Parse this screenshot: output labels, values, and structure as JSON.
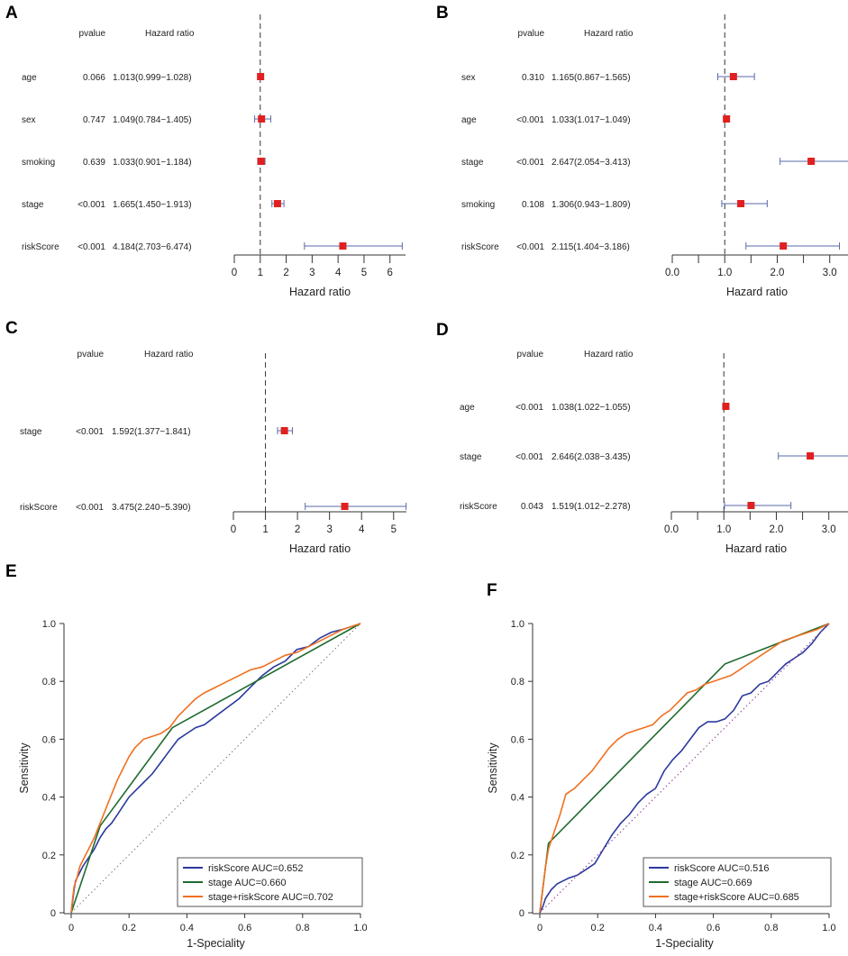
{
  "chart_data": [
    {
      "type": "forest",
      "panel": "A",
      "headers": {
        "pvalue": "pvalue",
        "hr": "Hazard ratio"
      },
      "rows": [
        {
          "label": "age",
          "pvalue": "0.066",
          "hr_text": "1.013(0.999−1.028)",
          "hr": 1.013,
          "lo": 0.999,
          "hi": 1.028
        },
        {
          "label": "sex",
          "pvalue": "0.747",
          "hr_text": "1.049(0.784−1.405)",
          "hr": 1.049,
          "lo": 0.784,
          "hi": 1.405
        },
        {
          "label": "smoking",
          "pvalue": "0.639",
          "hr_text": "1.033(0.901−1.184)",
          "hr": 1.033,
          "lo": 0.901,
          "hi": 1.184
        },
        {
          "label": "stage",
          "pvalue": "<0.001",
          "hr_text": "1.665(1.450−1.913)",
          "hr": 1.665,
          "lo": 1.45,
          "hi": 1.913
        },
        {
          "label": "riskScore",
          "pvalue": "<0.001",
          "hr_text": "4.184(2.703−6.474)",
          "hr": 4.184,
          "lo": 2.703,
          "hi": 6.474
        }
      ],
      "xlim": [
        0,
        6.6
      ],
      "ticks": [
        0,
        1,
        2,
        3,
        4,
        5,
        6
      ],
      "tick_labels": [
        "0",
        "1",
        "2",
        "3",
        "4",
        "5",
        "6"
      ],
      "ref_line": 1,
      "xlabel": "Hazard ratio"
    },
    {
      "type": "forest",
      "panel": "B",
      "headers": {
        "pvalue": "pvalue",
        "hr": "Hazard ratio"
      },
      "rows": [
        {
          "label": "sex",
          "pvalue": "0.310",
          "hr_text": "1.165(0.867−1.565)",
          "hr": 1.165,
          "lo": 0.867,
          "hi": 1.565
        },
        {
          "label": "age",
          "pvalue": "<0.001",
          "hr_text": "1.033(1.017−1.049)",
          "hr": 1.033,
          "lo": 1.017,
          "hi": 1.049
        },
        {
          "label": "stage",
          "pvalue": "<0.001",
          "hr_text": "2.647(2.054−3.413)",
          "hr": 2.647,
          "lo": 2.054,
          "hi": 3.413
        },
        {
          "label": "smoking",
          "pvalue": "0.108",
          "hr_text": "1.306(0.943−1.809)",
          "hr": 1.306,
          "lo": 0.943,
          "hi": 1.809
        },
        {
          "label": "riskScore",
          "pvalue": "<0.001",
          "hr_text": "2.115(1.404−3.186)",
          "hr": 2.115,
          "lo": 1.404,
          "hi": 3.186
        }
      ],
      "xlim": [
        0,
        3.4
      ],
      "ticks": [
        0,
        0.5,
        1,
        1.5,
        2,
        2.5,
        3
      ],
      "tick_labels": [
        "0.0",
        "",
        "1.0",
        "",
        "2.0",
        "",
        "3.0"
      ],
      "ref_line": 1,
      "xlabel": "Hazard ratio"
    },
    {
      "type": "forest",
      "panel": "C",
      "headers": {
        "pvalue": "pvalue",
        "hr": "Hazard ratio"
      },
      "rows": [
        {
          "label": "stage",
          "pvalue": "<0.001",
          "hr_text": "1.592(1.377−1.841)",
          "hr": 1.592,
          "lo": 1.377,
          "hi": 1.841
        },
        {
          "label": "riskScore",
          "pvalue": "<0.001",
          "hr_text": "3.475(2.240−5.390)",
          "hr": 3.475,
          "lo": 2.24,
          "hi": 5.39
        }
      ],
      "xlim": [
        0,
        5.4
      ],
      "ticks": [
        0,
        1,
        2,
        3,
        4,
        5
      ],
      "tick_labels": [
        "0",
        "1",
        "2",
        "3",
        "4",
        "5"
      ],
      "ref_line": 1,
      "xlabel": "Hazard ratio"
    },
    {
      "type": "forest",
      "panel": "D",
      "headers": {
        "pvalue": "pvalue",
        "hr": "Hazard ratio"
      },
      "rows": [
        {
          "label": "age",
          "pvalue": "<0.001",
          "hr_text": "1.038(1.022−1.055)",
          "hr": 1.038,
          "lo": 1.022,
          "hi": 1.055
        },
        {
          "label": "stage",
          "pvalue": "<0.001",
          "hr_text": "2.646(2.038−3.435)",
          "hr": 2.646,
          "lo": 2.038,
          "hi": 3.435
        },
        {
          "label": "riskScore",
          "pvalue": "0.043",
          "hr_text": "1.519(1.012−2.278)",
          "hr": 1.519,
          "lo": 1.012,
          "hi": 2.278
        }
      ],
      "xlim": [
        0,
        3.4
      ],
      "ticks": [
        0,
        0.5,
        1,
        1.5,
        2,
        2.5,
        3
      ],
      "tick_labels": [
        "0.0",
        "",
        "1.0",
        "",
        "2.0",
        "",
        "3.0"
      ],
      "ref_line": 1,
      "xlabel": "Hazard ratio"
    },
    {
      "type": "line",
      "panel": "E",
      "xlabel": "1-Speciality",
      "ylabel": "Sensitivity",
      "xlim": [
        0,
        1
      ],
      "ylim": [
        0,
        1
      ],
      "ticks": [
        0,
        0.2,
        0.4,
        0.6,
        0.8,
        1
      ],
      "x_tick_labels": [
        "0",
        "0.2",
        "0.4",
        "0.6",
        "0.8",
        "1.0"
      ],
      "y_tick_labels": [
        "0",
        "0.2",
        "0.4",
        "0.6",
        "0.8",
        "1.0"
      ],
      "legend_position": "bottom-right",
      "series": [
        {
          "name": "riskScore AUC=0.652",
          "color": "#2b3a9e",
          "points": [
            [
              0,
              0
            ],
            [
              0.005,
              0.04
            ],
            [
              0.01,
              0.08
            ],
            [
              0.015,
              0.11
            ],
            [
              0.025,
              0.13
            ],
            [
              0.04,
              0.16
            ],
            [
              0.06,
              0.19
            ],
            [
              0.08,
              0.22
            ],
            [
              0.1,
              0.26
            ],
            [
              0.12,
              0.29
            ],
            [
              0.14,
              0.31
            ],
            [
              0.16,
              0.34
            ],
            [
              0.18,
              0.37
            ],
            [
              0.2,
              0.4
            ],
            [
              0.22,
              0.42
            ],
            [
              0.25,
              0.45
            ],
            [
              0.28,
              0.48
            ],
            [
              0.31,
              0.52
            ],
            [
              0.34,
              0.56
            ],
            [
              0.37,
              0.6
            ],
            [
              0.4,
              0.62
            ],
            [
              0.43,
              0.64
            ],
            [
              0.46,
              0.65
            ],
            [
              0.5,
              0.68
            ],
            [
              0.54,
              0.71
            ],
            [
              0.58,
              0.74
            ],
            [
              0.62,
              0.78
            ],
            [
              0.66,
              0.82
            ],
            [
              0.7,
              0.85
            ],
            [
              0.74,
              0.87
            ],
            [
              0.78,
              0.91
            ],
            [
              0.82,
              0.92
            ],
            [
              0.86,
              0.95
            ],
            [
              0.9,
              0.97
            ],
            [
              0.94,
              0.98
            ],
            [
              0.97,
              0.99
            ],
            [
              1,
              1
            ]
          ]
        },
        {
          "name": "stage AUC=0.660",
          "color": "#1e6b2e",
          "points": [
            [
              0,
              0
            ],
            [
              0.1,
              0.3
            ],
            [
              0.35,
              0.64
            ],
            [
              1,
              1
            ]
          ]
        },
        {
          "name": "stage+riskScore AUC=0.702",
          "color": "#f07020",
          "points": [
            [
              0,
              0
            ],
            [
              0.005,
              0.05
            ],
            [
              0.01,
              0.09
            ],
            [
              0.02,
              0.12
            ],
            [
              0.03,
              0.16
            ],
            [
              0.045,
              0.19
            ],
            [
              0.06,
              0.22
            ],
            [
              0.08,
              0.26
            ],
            [
              0.1,
              0.31
            ],
            [
              0.12,
              0.36
            ],
            [
              0.14,
              0.41
            ],
            [
              0.16,
              0.46
            ],
            [
              0.18,
              0.5
            ],
            [
              0.2,
              0.54
            ],
            [
              0.22,
              0.57
            ],
            [
              0.25,
              0.6
            ],
            [
              0.28,
              0.61
            ],
            [
              0.31,
              0.62
            ],
            [
              0.34,
              0.64
            ],
            [
              0.37,
              0.68
            ],
            [
              0.4,
              0.71
            ],
            [
              0.43,
              0.74
            ],
            [
              0.46,
              0.76
            ],
            [
              0.5,
              0.78
            ],
            [
              0.54,
              0.8
            ],
            [
              0.58,
              0.82
            ],
            [
              0.62,
              0.84
            ],
            [
              0.66,
              0.85
            ],
            [
              0.7,
              0.87
            ],
            [
              0.74,
              0.89
            ],
            [
              0.78,
              0.9
            ],
            [
              0.82,
              0.92
            ],
            [
              0.86,
              0.94
            ],
            [
              0.9,
              0.96
            ],
            [
              0.94,
              0.98
            ],
            [
              0.97,
              0.99
            ],
            [
              1,
              1
            ]
          ]
        },
        {
          "name": "",
          "color": "#777777",
          "dotted": true,
          "points": [
            [
              0,
              0
            ],
            [
              1,
              1
            ]
          ]
        }
      ]
    },
    {
      "type": "line",
      "panel": "F",
      "xlabel": "1-Speciality",
      "ylabel": "Sensitivity",
      "xlim": [
        0,
        1
      ],
      "ylim": [
        0,
        1
      ],
      "ticks": [
        0,
        0.2,
        0.4,
        0.6,
        0.8,
        1
      ],
      "x_tick_labels": [
        "0",
        "0.2",
        "0.4",
        "0.6",
        "0.8",
        "1.0"
      ],
      "y_tick_labels": [
        "0",
        "0.2",
        "0.4",
        "0.6",
        "0.8",
        "1.0"
      ],
      "legend_position": "bottom-right",
      "series": [
        {
          "name": "riskScore AUC=0.516",
          "color": "#2b3a9e",
          "points": [
            [
              0,
              0
            ],
            [
              0.01,
              0.02
            ],
            [
              0.02,
              0.05
            ],
            [
              0.04,
              0.08
            ],
            [
              0.06,
              0.1
            ],
            [
              0.08,
              0.11
            ],
            [
              0.1,
              0.12
            ],
            [
              0.13,
              0.13
            ],
            [
              0.16,
              0.15
            ],
            [
              0.19,
              0.17
            ],
            [
              0.22,
              0.22
            ],
            [
              0.25,
              0.27
            ],
            [
              0.28,
              0.31
            ],
            [
              0.31,
              0.34
            ],
            [
              0.34,
              0.38
            ],
            [
              0.37,
              0.41
            ],
            [
              0.4,
              0.43
            ],
            [
              0.43,
              0.49
            ],
            [
              0.46,
              0.53
            ],
            [
              0.49,
              0.56
            ],
            [
              0.52,
              0.6
            ],
            [
              0.55,
              0.64
            ],
            [
              0.58,
              0.66
            ],
            [
              0.61,
              0.66
            ],
            [
              0.64,
              0.67
            ],
            [
              0.67,
              0.7
            ],
            [
              0.7,
              0.75
            ],
            [
              0.73,
              0.76
            ],
            [
              0.76,
              0.79
            ],
            [
              0.79,
              0.8
            ],
            [
              0.82,
              0.83
            ],
            [
              0.85,
              0.86
            ],
            [
              0.88,
              0.88
            ],
            [
              0.91,
              0.9
            ],
            [
              0.94,
              0.93
            ],
            [
              0.97,
              0.97
            ],
            [
              1,
              1
            ]
          ]
        },
        {
          "name": "stage AUC=0.669",
          "color": "#1e6b2e",
          "points": [
            [
              0,
              0
            ],
            [
              0.03,
              0.24
            ],
            [
              0.64,
              0.86
            ],
            [
              1,
              1
            ]
          ]
        },
        {
          "name": "stage+riskScore AUC=0.685",
          "color": "#f07020",
          "points": [
            [
              0,
              0
            ],
            [
              0.01,
              0.08
            ],
            [
              0.02,
              0.16
            ],
            [
              0.03,
              0.22
            ],
            [
              0.05,
              0.28
            ],
            [
              0.07,
              0.34
            ],
            [
              0.09,
              0.41
            ],
            [
              0.12,
              0.43
            ],
            [
              0.15,
              0.46
            ],
            [
              0.18,
              0.49
            ],
            [
              0.21,
              0.53
            ],
            [
              0.24,
              0.57
            ],
            [
              0.27,
              0.6
            ],
            [
              0.3,
              0.62
            ],
            [
              0.33,
              0.63
            ],
            [
              0.36,
              0.64
            ],
            [
              0.39,
              0.65
            ],
            [
              0.42,
              0.68
            ],
            [
              0.45,
              0.7
            ],
            [
              0.48,
              0.73
            ],
            [
              0.51,
              0.76
            ],
            [
              0.54,
              0.77
            ],
            [
              0.57,
              0.79
            ],
            [
              0.6,
              0.8
            ],
            [
              0.63,
              0.81
            ],
            [
              0.66,
              0.82
            ],
            [
              0.69,
              0.84
            ],
            [
              0.72,
              0.86
            ],
            [
              0.75,
              0.88
            ],
            [
              0.78,
              0.9
            ],
            [
              0.81,
              0.92
            ],
            [
              0.84,
              0.94
            ],
            [
              0.87,
              0.95
            ],
            [
              0.9,
              0.96
            ],
            [
              0.93,
              0.97
            ],
            [
              0.96,
              0.98
            ],
            [
              1,
              1
            ]
          ]
        },
        {
          "name": "",
          "color": "#8a3a8a",
          "dotted": true,
          "points": [
            [
              0,
              0
            ],
            [
              1,
              1
            ]
          ]
        }
      ]
    }
  ]
}
